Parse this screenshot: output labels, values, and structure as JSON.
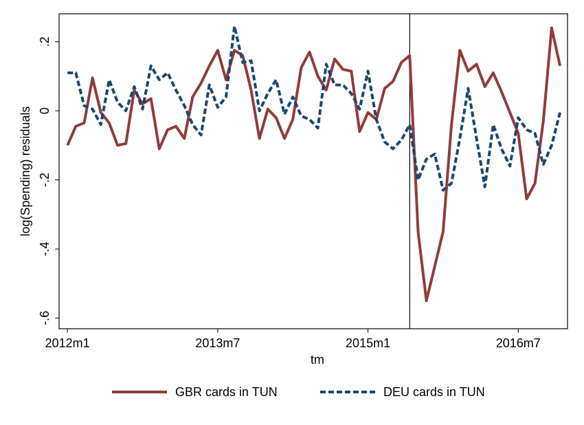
{
  "chart_data": {
    "type": "line",
    "x_label": "tm",
    "y_label": "log(Spending) residuals",
    "x": [
      624,
      625,
      626,
      627,
      628,
      629,
      630,
      631,
      632,
      633,
      634,
      635,
      636,
      637,
      638,
      639,
      640,
      641,
      642,
      643,
      644,
      645,
      646,
      647,
      648,
      649,
      650,
      651,
      652,
      653,
      654,
      655,
      656,
      657,
      658,
      659,
      660,
      661,
      662,
      663,
      664,
      665,
      666,
      667,
      668,
      669,
      670,
      671,
      672,
      673,
      674,
      675,
      676,
      677,
      678,
      679,
      680,
      681,
      682,
      683
    ],
    "series": [
      {
        "name": "GBR cards in TUN",
        "color": "#903c3c",
        "dash": false,
        "values": [
          -0.1,
          -0.045,
          -0.035,
          0.095,
          -0.005,
          -0.035,
          -0.1,
          -0.095,
          0.06,
          0.02,
          0.035,
          -0.11,
          -0.055,
          -0.045,
          -0.08,
          0.04,
          0.08,
          0.13,
          0.175,
          0.09,
          0.175,
          0.16,
          0.06,
          -0.08,
          0.005,
          -0.02,
          -0.08,
          -0.025,
          0.125,
          0.17,
          0.1,
          0.06,
          0.15,
          0.12,
          0.115,
          -0.06,
          -0.005,
          -0.025,
          0.065,
          0.085,
          0.14,
          0.16,
          -0.35,
          -0.55,
          -0.45,
          -0.35,
          -0.04,
          0.175,
          0.115,
          0.135,
          0.07,
          0.11,
          0.055,
          -0.005,
          -0.065,
          -0.255,
          -0.21,
          -0.03,
          0.24,
          0.13
        ]
      },
      {
        "name": "DEU cards in TUN",
        "color": "#1a476f",
        "dash": true,
        "values": [
          0.11,
          0.11,
          0.015,
          0.005,
          -0.04,
          0.09,
          0.025,
          0.0,
          0.07,
          0.005,
          0.13,
          0.09,
          0.11,
          0.06,
          0.015,
          -0.04,
          -0.07,
          0.075,
          0.01,
          0.04,
          0.245,
          0.14,
          0.145,
          0.0,
          0.05,
          0.09,
          -0.01,
          0.04,
          -0.015,
          -0.025,
          -0.05,
          0.135,
          0.075,
          0.075,
          0.05,
          0.005,
          0.115,
          -0.025,
          -0.09,
          -0.11,
          -0.085,
          -0.04,
          -0.2,
          -0.14,
          -0.125,
          -0.23,
          -0.21,
          -0.08,
          0.065,
          -0.08,
          -0.22,
          -0.04,
          -0.11,
          -0.16,
          -0.02,
          -0.055,
          -0.065,
          -0.155,
          -0.1,
          -0.005
        ]
      }
    ],
    "xlim": [
      623,
      683.9
    ],
    "ylim": [
      -0.631,
      0.281
    ],
    "xticks": [
      {
        "value": 624,
        "label": "2012m1"
      },
      {
        "value": 642,
        "label": "2013m7"
      },
      {
        "value": 660,
        "label": "2015m1"
      },
      {
        "value": 678,
        "label": "2016m7"
      }
    ],
    "yticks": [
      {
        "value": -0.6,
        "label": "-.6"
      },
      {
        "value": -0.4,
        "label": "-.4"
      },
      {
        "value": -0.2,
        "label": "-.2"
      },
      0,
      {
        "value": 0.2,
        "label": ".2"
      }
    ],
    "xline": 665,
    "grid": false,
    "legend": "bottom"
  }
}
